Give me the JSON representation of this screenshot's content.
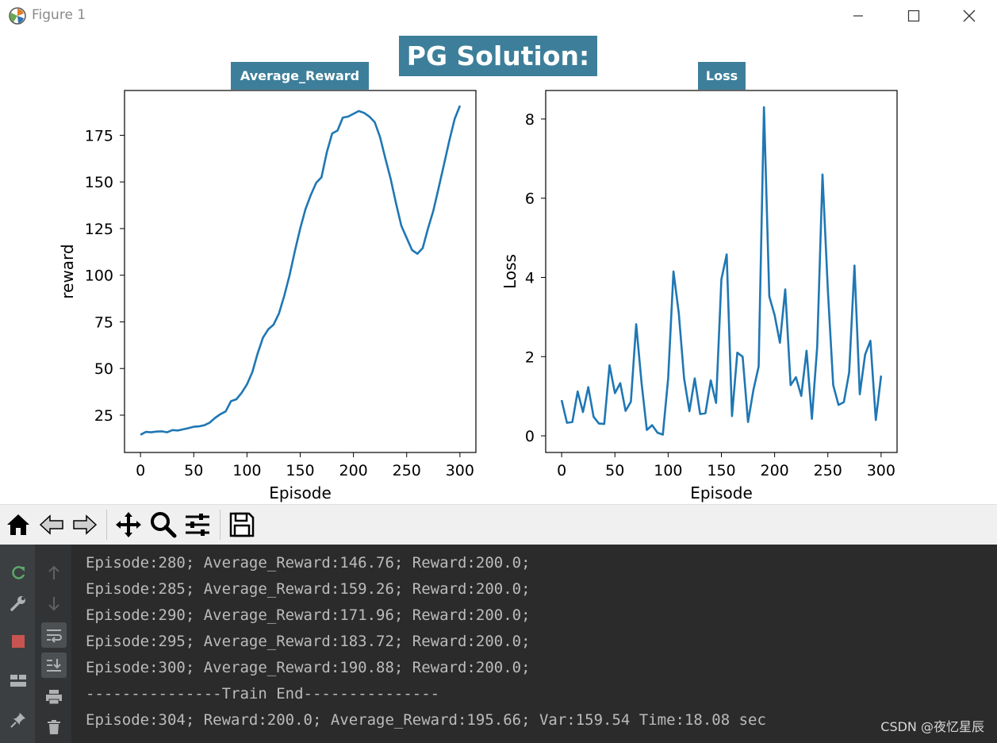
{
  "window": {
    "title": "Figure 1"
  },
  "figure": {
    "suptitle": "PG Solution:"
  },
  "chart_data": [
    {
      "type": "line",
      "title": "Average_Reward",
      "xlabel": "Episode",
      "ylabel": "reward",
      "xticks": [
        "0",
        "50",
        "100",
        "150",
        "200",
        "250",
        "300"
      ],
      "yticks": [
        "25",
        "50",
        "75",
        "100",
        "125",
        "150",
        "175"
      ],
      "xlim": [
        -15,
        315
      ],
      "ylim": [
        5,
        199
      ],
      "grid": false,
      "color": "#1f77b4",
      "x": [
        0,
        5,
        10,
        15,
        20,
        25,
        30,
        35,
        40,
        45,
        50,
        55,
        60,
        65,
        70,
        75,
        80,
        85,
        90,
        95,
        100,
        105,
        110,
        115,
        120,
        125,
        130,
        135,
        140,
        145,
        150,
        155,
        160,
        165,
        170,
        175,
        180,
        185,
        190,
        195,
        200,
        205,
        210,
        215,
        220,
        225,
        230,
        235,
        240,
        245,
        250,
        255,
        260,
        265,
        270,
        275,
        280,
        285,
        290,
        295,
        300
      ],
      "y": [
        14.5,
        16,
        15.8,
        16.2,
        16.3,
        15.8,
        17,
        16.8,
        17.4,
        18,
        18.8,
        19,
        19.6,
        21,
        23.5,
        25.5,
        27,
        32.5,
        33.5,
        37,
        41.5,
        48,
        58,
        66.5,
        71,
        73.5,
        79.5,
        89,
        100,
        113,
        125,
        135.5,
        143,
        149.5,
        152.5,
        166,
        176,
        177.5,
        184.5,
        185,
        186.5,
        188,
        187,
        185,
        182,
        174,
        162.5,
        151.5,
        138.5,
        126.5,
        120,
        113.5,
        111.5,
        114.5,
        125,
        134.5,
        146.76,
        159.26,
        171.96,
        183.72,
        190.88
      ]
    },
    {
      "type": "line",
      "title": "Loss",
      "xlabel": "Episode",
      "ylabel": "Loss",
      "xticks": [
        "0",
        "50",
        "100",
        "150",
        "200",
        "250",
        "300"
      ],
      "yticks": [
        "0",
        "2",
        "4",
        "6",
        "8"
      ],
      "xlim": [
        -15,
        315
      ],
      "ylim": [
        -0.42,
        8.72
      ],
      "grid": false,
      "color": "#1f77b4",
      "x": [
        0,
        5,
        10,
        15,
        20,
        25,
        30,
        35,
        40,
        45,
        50,
        55,
        60,
        65,
        70,
        75,
        80,
        85,
        90,
        95,
        100,
        105,
        110,
        115,
        120,
        125,
        130,
        135,
        140,
        145,
        150,
        155,
        160,
        165,
        170,
        175,
        180,
        185,
        190,
        195,
        200,
        205,
        210,
        215,
        220,
        225,
        230,
        235,
        240,
        245,
        250,
        255,
        260,
        265,
        270,
        275,
        280,
        285,
        290,
        295,
        300
      ],
      "y": [
        0.9,
        0.33,
        0.35,
        1.12,
        0.6,
        1.23,
        0.48,
        0.31,
        0.3,
        1.78,
        1.08,
        1.33,
        0.63,
        0.86,
        2.82,
        1.35,
        0.15,
        0.27,
        0.08,
        0.03,
        1.45,
        4.15,
        3.1,
        1.45,
        0.62,
        1.45,
        0.55,
        0.57,
        1.4,
        0.83,
        3.95,
        4.58,
        0.5,
        2.1,
        2.0,
        0.35,
        1.15,
        1.75,
        8.3,
        3.52,
        3.05,
        2.35,
        3.7,
        1.28,
        1.48,
        1.01,
        2.15,
        0.43,
        2.25,
        6.6,
        3.7,
        1.28,
        0.78,
        0.85,
        1.6,
        4.3,
        1.05,
        2.05,
        2.4,
        0.4,
        1.52
      ]
    }
  ],
  "toolbar": {
    "buttons": [
      "home-icon",
      "back-icon",
      "forward-icon",
      "pan-icon",
      "zoom-icon",
      "configure-subplots-icon",
      "save-icon"
    ]
  },
  "console": {
    "lines": [
      "Episode:280; Average_Reward:146.76; Reward:200.0;",
      "Episode:285; Average_Reward:159.26; Reward:200.0;",
      "Episode:290; Average_Reward:171.96; Reward:200.0;",
      "Episode:295; Average_Reward:183.72; Reward:200.0;",
      "Episode:300; Average_Reward:190.88; Reward:200.0;",
      "---------------Train End---------------",
      "Episode:304; Reward:200.0; Average_Reward:195.66; Var:159.54 Time:18.08 sec"
    ],
    "left_icons": [
      "rerun-icon",
      "wrench-icon",
      "stop-icon",
      "layout-icon",
      "pin-icon"
    ],
    "gutter_icons": [
      "arrow-up-icon",
      "arrow-down-icon",
      "soft-wrap-icon",
      "scroll-to-end-icon",
      "print-icon",
      "trash-icon"
    ],
    "colors": {
      "text": "#bbbbbb",
      "background": "#2b2b2b",
      "stop": "#c75450",
      "rerun": "#59a869"
    }
  },
  "watermark": "CSDN @夜忆星辰"
}
